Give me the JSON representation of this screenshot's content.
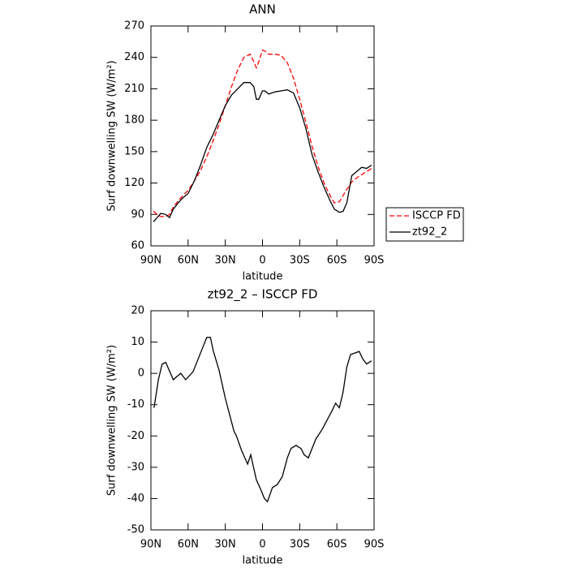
{
  "chart_data": [
    {
      "type": "line",
      "title": "ANN",
      "xlabel": "latitude",
      "ylabel": "Surf downwelling SW (W/m²)",
      "x": [
        88,
        85,
        82,
        78,
        75,
        72,
        68,
        65,
        60,
        55,
        50,
        45,
        40,
        35,
        30,
        25,
        20,
        15,
        10,
        7,
        5,
        3,
        0,
        -2,
        -5,
        -10,
        -15,
        -20,
        -25,
        -30,
        -35,
        -40,
        -45,
        -50,
        -55,
        -58,
        -62,
        -65,
        -68,
        -72,
        -76,
        -80,
        -84,
        -88
      ],
      "series": [
        {
          "name": "ISCCP FD",
          "color": "#ff0000",
          "linestyle": "dashed",
          "values": [
            93,
            90,
            88,
            88,
            90,
            97,
            103,
            107,
            113,
            122,
            132,
            145,
            160,
            176,
            194,
            212,
            228,
            240,
            243,
            236,
            230,
            236,
            247,
            246,
            243,
            243,
            242,
            235,
            220,
            200,
            178,
            155,
            135,
            119,
            107,
            101,
            102,
            108,
            114,
            121,
            125,
            128,
            131,
            134
          ]
        },
        {
          "name": "zt92_2",
          "color": "#000000",
          "linestyle": "solid",
          "values": [
            83,
            87,
            91,
            90,
            87,
            95,
            101,
            105,
            110,
            122,
            137,
            154,
            166,
            180,
            194,
            204,
            210,
            216,
            216,
            212,
            200,
            200,
            208,
            208,
            205,
            207,
            208,
            209,
            206,
            192,
            172,
            147,
            130,
            115,
            102,
            95,
            92,
            93,
            101,
            127,
            131,
            135,
            134,
            137
          ]
        }
      ],
      "xlim": [
        90,
        -90
      ],
      "xticks": [
        {
          "value": 90,
          "label": "90N"
        },
        {
          "value": 60,
          "label": "60N"
        },
        {
          "value": 30,
          "label": "30N"
        },
        0,
        {
          "value": -30,
          "label": "30S"
        },
        {
          "value": -60,
          "label": "60S"
        },
        {
          "value": -90,
          "label": "90S"
        }
      ],
      "ylim": [
        60,
        270
      ],
      "yticks": [
        60,
        90,
        120,
        150,
        180,
        210,
        240,
        270
      ],
      "grid": false,
      "legend": "right"
    },
    {
      "type": "line",
      "title": "zt92_2 – ISCCP FD",
      "xlabel": "latitude",
      "ylabel": "Surf downwelling SW (W/m²)",
      "x": [
        87.5,
        84,
        81,
        78,
        72,
        66,
        62,
        56,
        45,
        42,
        39.6,
        35,
        30,
        23,
        21,
        17,
        12,
        9.5,
        5,
        1.5,
        -1.5,
        -4,
        -8,
        -12,
        -16,
        -20,
        -23,
        -27,
        -31,
        -33.6,
        -37,
        -43,
        -48,
        -56,
        -59,
        -62,
        -65,
        -68,
        -71,
        -78,
        -81,
        -84,
        -88
      ],
      "series": [
        {
          "color": "#000000",
          "linestyle": "solid",
          "values": [
            -11,
            -2,
            3,
            3.5,
            -2,
            0,
            -2,
            0.5,
            11.5,
            11.5,
            7,
            1,
            -8,
            -18.5,
            -20,
            -24.5,
            -29,
            -26,
            -34,
            -37,
            -40,
            -41,
            -36.5,
            -35.5,
            -33,
            -27,
            -24,
            -23,
            -24,
            -26,
            -27,
            -21,
            -18,
            -12,
            -9.5,
            -11,
            -6,
            2,
            6,
            7,
            4.5,
            3,
            4
          ]
        }
      ],
      "xlim": [
        90,
        -90
      ],
      "xticks": [
        {
          "value": 90,
          "label": "90N"
        },
        {
          "value": 60,
          "label": "60N"
        },
        {
          "value": 30,
          "label": "30N"
        },
        0,
        {
          "value": -30,
          "label": "30S"
        },
        {
          "value": -60,
          "label": "60S"
        },
        {
          "value": -90,
          "label": "90S"
        }
      ],
      "ylim": [
        -50,
        20
      ],
      "yticks": [
        -50,
        -40,
        -30,
        -20,
        -10,
        0,
        10,
        20
      ],
      "grid": false
    }
  ]
}
